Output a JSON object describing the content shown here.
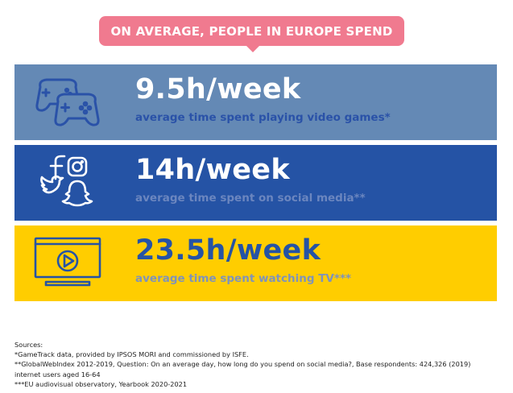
{
  "header": {
    "title": "ON AVERAGE, PEOPLE IN EUROPE SPEND",
    "color": "#f07a8f"
  },
  "rows": [
    {
      "icon": "gamepad-icon",
      "value": "9.5h/week",
      "description": "average time spent playing video games*",
      "background": "#6489b5"
    },
    {
      "icon": "social-media-icons",
      "value": "14h/week",
      "description": "average time spent on social media**",
      "background": "#2553a5"
    },
    {
      "icon": "tv-play-icon",
      "value": "23.5h/week",
      "description": "average time spent watching TV***",
      "background": "#ffcd00"
    }
  ],
  "sources": {
    "heading": "Sources:",
    "lines": [
      "*GameTrack data, provided by IPSOS MORI and commissioned by ISFE.",
      "**GlobalWebIndex 2012-2019, Question:  On an average day, how long do you spend on social media?, Base respondents: 424,326 (2019) internet users aged 16-64",
      "***EU audiovisual observatory, Yearbook 2020-2021"
    ]
  }
}
